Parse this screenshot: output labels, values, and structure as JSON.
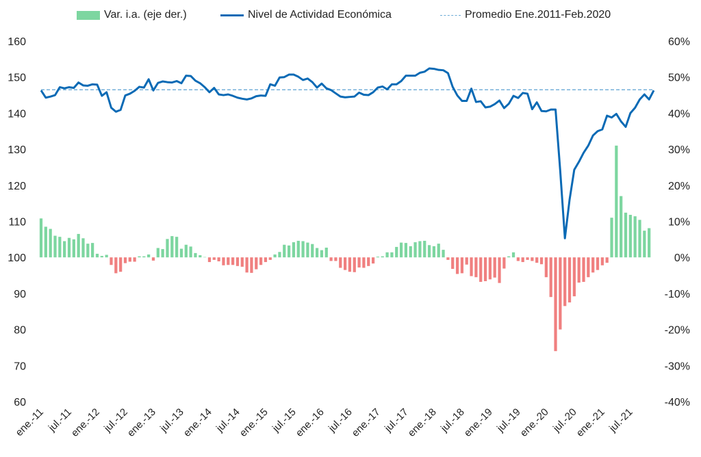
{
  "legend": {
    "bars": "Var. i.a. (eje der.)",
    "line": "Nivel de Actividad Económica",
    "avg": "Promedio Ene.2011-Feb.2020"
  },
  "colors": {
    "line": "#0a6ab5",
    "avg": "#6aaad6",
    "bar_pos": "#7dd6a0",
    "bar_neg": "#f08080"
  },
  "chart_data": {
    "type": "bar+line",
    "start": "ene.-11",
    "x_tick_labels": [
      "ene.-11",
      "jul.-11",
      "ene.-12",
      "jul.-12",
      "ene.-13",
      "jul.-13",
      "ene.-14",
      "jul.-14",
      "ene.-15",
      "jul.-15",
      "ene.-16",
      "jul.-16",
      "ene.-17",
      "jul.-17",
      "ene.-18",
      "jul.-18",
      "ene.-19",
      "jul.-19",
      "ene.-20",
      "jul.-20",
      "ene.-21",
      "jul.-21"
    ],
    "y_left": {
      "range": [
        60,
        160
      ],
      "ticks": [
        60,
        70,
        80,
        90,
        100,
        110,
        120,
        130,
        140,
        150,
        160
      ]
    },
    "y_right": {
      "range": [
        -40,
        60
      ],
      "unit": "%",
      "ticks": [
        "-40%",
        "-30%",
        "-20%",
        "-10%",
        "0%",
        "10%",
        "20%",
        "30%",
        "40%",
        "50%",
        "60%"
      ]
    },
    "average": 146.5,
    "series": [
      {
        "name": "Nivel de Actividad Económica",
        "axis": "left",
        "values": [
          146.3,
          144.3,
          144.6,
          145.0,
          147.2,
          146.9,
          147.2,
          147.0,
          148.5,
          147.7,
          147.6,
          148.0,
          147.9,
          144.8,
          145.8,
          141.5,
          140.4,
          140.9,
          144.9,
          145.4,
          146.2,
          147.3,
          147.1,
          149.4,
          146.3,
          148.4,
          148.8,
          148.6,
          148.5,
          148.9,
          148.3,
          150.4,
          150.3,
          149.0,
          148.3,
          147.2,
          145.8,
          147.0,
          145.2,
          145.0,
          145.2,
          144.8,
          144.3,
          144.0,
          143.8,
          144.1,
          144.7,
          144.9,
          144.8,
          148.0,
          147.6,
          149.9,
          150.0,
          150.7,
          150.7,
          150.1,
          149.2,
          149.6,
          148.6,
          147.1,
          148.2,
          146.9,
          146.4,
          145.5,
          144.6,
          144.4,
          144.5,
          144.6,
          145.7,
          145.1,
          145.0,
          145.8,
          147.1,
          147.4,
          146.6,
          148.0,
          148.0,
          148.9,
          150.4,
          150.4,
          150.4,
          151.2,
          151.5,
          152.4,
          152.3,
          152.0,
          151.9,
          151.1,
          147.3,
          144.9,
          143.4,
          143.4,
          146.8,
          143.1,
          143.3,
          141.6,
          141.8,
          142.5,
          143.5,
          141.4,
          142.6,
          144.8,
          144.2,
          145.6,
          145.4,
          141.1,
          143.0,
          140.6,
          140.5,
          141.0,
          141.0,
          124.0,
          105.3,
          116.0,
          124.3,
          126.5,
          129.0,
          131.0,
          133.8,
          135.0,
          135.5,
          139.3,
          138.8,
          139.8,
          137.7,
          136.2,
          140.0,
          141.5,
          143.8,
          145.2,
          143.8,
          146.3
        ]
      },
      {
        "name": "Var. i.a. (eje der.)",
        "axis": "right",
        "unit": "%",
        "values": [
          10.8,
          8.5,
          7.9,
          6.0,
          5.7,
          4.5,
          5.4,
          5.0,
          6.5,
          5.3,
          3.8,
          4.0,
          1.0,
          0.4,
          0.7,
          -2.1,
          -4.4,
          -4.0,
          -1.6,
          -1.2,
          -1.2,
          0.3,
          0.3,
          0.8,
          -0.9,
          2.6,
          2.3,
          5.1,
          5.9,
          5.7,
          2.4,
          3.5,
          3.0,
          1.2,
          0.6,
          0.1,
          -1.3,
          -0.7,
          -1.1,
          -2.2,
          -2.1,
          -2.1,
          -2.4,
          -2.6,
          -4.2,
          -4.3,
          -3.3,
          -2.1,
          -1.3,
          -0.7,
          0.8,
          1.5,
          3.5,
          3.3,
          4.2,
          4.6,
          4.5,
          4.1,
          3.7,
          2.6,
          2.0,
          2.7,
          -1.0,
          -1.0,
          -2.9,
          -3.5,
          -4.0,
          -4.1,
          -2.8,
          -2.9,
          -2.4,
          -1.7,
          0.2,
          0.3,
          1.4,
          1.4,
          2.9,
          4.1,
          4.0,
          3.1,
          4.2,
          4.5,
          4.6,
          3.4,
          3.1,
          3.8,
          2.1,
          -0.7,
          -3.2,
          -4.6,
          -4.4,
          -2.0,
          -5.2,
          -5.5,
          -6.8,
          -6.6,
          -6.1,
          -5.6,
          -7.1,
          -3.1,
          0.3,
          1.4,
          -1.0,
          -1.3,
          -0.7,
          -1.0,
          -1.5,
          -1.9,
          -5.5,
          -11.0,
          -26.0,
          -20.0,
          -13.5,
          -12.5,
          -10.8,
          -7.0,
          -6.8,
          -5.5,
          -4.2,
          -3.5,
          -2.2,
          -1.5,
          11.0,
          31.0,
          17.0,
          12.4,
          11.8,
          11.4,
          10.4,
          7.4,
          8.1
        ]
      },
      {
        "name": "Promedio Ene.2011-Feb.2020",
        "axis": "left",
        "values": [
          146.5
        ]
      }
    ],
    "legend_position": "top",
    "grid": false
  }
}
